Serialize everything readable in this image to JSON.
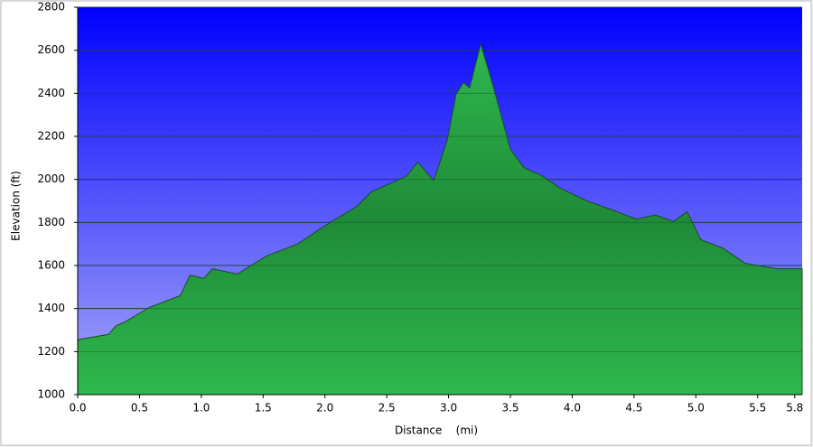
{
  "chart_data": {
    "type": "area",
    "x_label": "Distance    (mi)",
    "y_label": "Elevation (ft)",
    "x": [
      0,
      0.25,
      0.31,
      0.39,
      0.58,
      0.83,
      0.91,
      1.02,
      1.09,
      1.29,
      1.53,
      1.78,
      2.0,
      2.26,
      2.37,
      2.66,
      2.75,
      2.88,
      2.99,
      3.06,
      3.12,
      3.17,
      3.26,
      3.36,
      3.5,
      3.61,
      3.76,
      3.9,
      4.12,
      4.34,
      4.52,
      4.67,
      4.82,
      4.93,
      5.04,
      5.22,
      5.4,
      5.66,
      5.86
    ],
    "series": [
      {
        "color": "#22aa44",
        "values": [
          1255,
          1280,
          1320,
          1340,
          1405,
          1460,
          1555,
          1540,
          1585,
          1560,
          1645,
          1700,
          1785,
          1875,
          1940,
          2015,
          2080,
          1995,
          2185,
          2395,
          2450,
          2425,
          2630,
          2435,
          2140,
          2055,
          2015,
          1960,
          1900,
          1855,
          1815,
          1835,
          1805,
          1850,
          1720,
          1680,
          1610,
          1585,
          1585
        ]
      }
    ],
    "xlim": [
      0,
      5.86
    ],
    "xticks": [
      {
        "value": 0,
        "label": "0.0"
      },
      0.5,
      {
        "value": 1,
        "label": "1.0"
      },
      1.5,
      {
        "value": 2,
        "label": "2.0"
      },
      2.5,
      {
        "value": 3,
        "label": "3.0"
      },
      3.5,
      {
        "value": 4,
        "label": "4.0"
      },
      4.5,
      {
        "value": 5,
        "label": "5.0"
      },
      5.5,
      5.8
    ],
    "ylim": [
      1000,
      2800
    ],
    "yticks": [
      1000,
      1200,
      1400,
      1600,
      1800,
      2000,
      2200,
      2400,
      2600,
      2800
    ],
    "grid": true
  }
}
